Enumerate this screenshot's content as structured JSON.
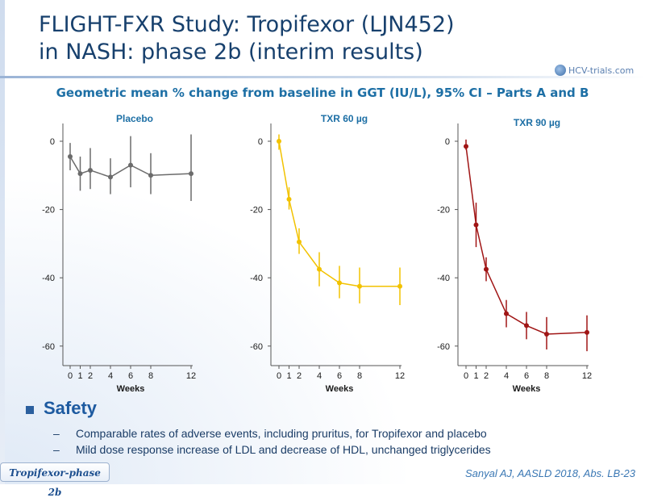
{
  "title_line1": "FLIGHT-FXR Study: Tropifexor (LJN452)",
  "title_line2": "in NASH: phase 2b (interim results)",
  "logo_text": "HCV-trials.com",
  "subtitle": "Geometric mean % change from baseline in GGT (IU/L), 95% CI – Parts A and B",
  "chart_data": [
    {
      "type": "line",
      "title": "Placebo",
      "xlabel": "Weeks",
      "ylabel": "",
      "x": [
        0,
        1,
        2,
        4,
        6,
        8,
        12
      ],
      "x_ticks": [
        0,
        1,
        2,
        4,
        6,
        8,
        12
      ],
      "y_ticks": [
        0,
        -20,
        -40,
        -60
      ],
      "ylim": [
        -65,
        6
      ],
      "values": [
        -4.5,
        -9.5,
        -8.5,
        -10.5,
        -7,
        -10,
        -9.5
      ],
      "ci_low": [
        -8.5,
        -14.5,
        -14,
        -15.5,
        -13.5,
        -15.5,
        -17.5
      ],
      "ci_high": [
        -0.5,
        -4.5,
        -2,
        -5,
        1.5,
        -3.5,
        2
      ],
      "color": "#6b6b6b"
    },
    {
      "type": "line",
      "title": "TXR 60 µg",
      "xlabel": "Weeks",
      "ylabel": "",
      "x": [
        0,
        1,
        2,
        4,
        6,
        8,
        12
      ],
      "x_ticks": [
        0,
        1,
        2,
        4,
        6,
        8,
        12
      ],
      "y_ticks": [
        0,
        -20,
        -40,
        -60
      ],
      "ylim": [
        -65,
        6
      ],
      "values": [
        0,
        -17,
        -29.5,
        -37.5,
        -41.5,
        -42.5,
        -42.5
      ],
      "ci_low": [
        -2.5,
        -20,
        -33,
        -42.5,
        -46,
        -47.5,
        -48
      ],
      "ci_high": [
        2,
        -13.5,
        -25.5,
        -32.5,
        -36.5,
        -37,
        -37
      ],
      "color": "#f2c200"
    },
    {
      "type": "line",
      "title": "TXR 90 µg",
      "xlabel": "Weeks",
      "ylabel": "",
      "x": [
        0,
        1,
        2,
        4,
        6,
        8,
        12
      ],
      "x_ticks": [
        0,
        1,
        2,
        4,
        6,
        8,
        12
      ],
      "y_ticks": [
        0,
        -20,
        -40,
        -60
      ],
      "ylim": [
        -65,
        6
      ],
      "values": [
        -1.5,
        -24.5,
        -37.5,
        -50.5,
        -54,
        -56.5,
        -56
      ],
      "ci_low": [
        -2.5,
        -31,
        -41,
        -54.5,
        -58,
        -61,
        -61.5
      ],
      "ci_high": [
        0.5,
        -18,
        -34,
        -46.5,
        -50,
        -51.5,
        -51
      ],
      "color": "#a01515"
    }
  ],
  "safety": {
    "title": "Safety",
    "items": [
      "Comparable rates of adverse events, including pruritus, for Tropifexor and placebo",
      "Mild dose response increase of LDL and decrease of HDL, unchanged triglycerides"
    ]
  },
  "footer_tag": "Tropifexor-phase 2b",
  "citation": "Sanyal AJ, AASLD 2018, Abs. LB-23",
  "colors": {
    "title": "#17406d",
    "subtitle": "#1d6fa5",
    "accent": "#1d5aa0"
  }
}
